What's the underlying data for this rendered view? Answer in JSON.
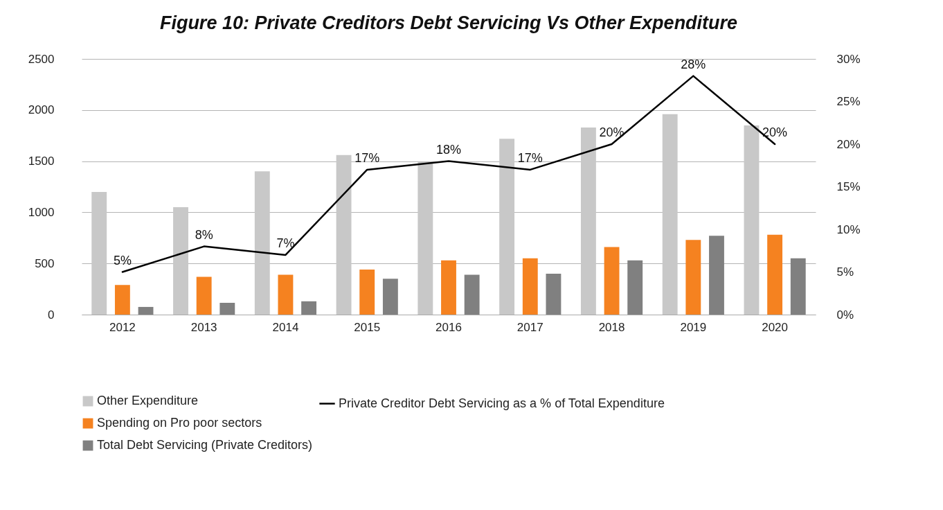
{
  "chart_data": {
    "type": "bar",
    "title": "Figure 10: Private Creditors Debt Servicing Vs Other Expenditure",
    "categories": [
      "2012",
      "2013",
      "2014",
      "2015",
      "2016",
      "2017",
      "2018",
      "2019",
      "2020"
    ],
    "series": [
      {
        "name": "Other Expenditure",
        "color": "#c8c8c8",
        "values": [
          1200,
          1050,
          1400,
          1560,
          1490,
          1720,
          1830,
          1960,
          1850
        ]
      },
      {
        "name": "Spending on Pro poor sectors",
        "color": "#f58220",
        "values": [
          290,
          370,
          390,
          440,
          530,
          550,
          660,
          730,
          780
        ]
      },
      {
        "name": "Total Debt Servicing (Private Creditors)",
        "color": "#808080",
        "values": [
          75,
          115,
          130,
          350,
          390,
          400,
          530,
          770,
          550
        ]
      },
      {
        "name": "Private Creditor Debt Servicing as a % of Total Expenditure",
        "type": "line",
        "axis": "y2",
        "color": "#000000",
        "values": [
          5,
          8,
          7,
          17,
          18,
          17,
          20,
          28,
          20
        ],
        "value_labels": [
          "5%",
          "8%",
          "7%",
          "17%",
          "18%",
          "17%",
          "20%",
          "28%",
          "20%"
        ]
      }
    ],
    "ylim": [
      0,
      2500
    ],
    "yticks": [
      0,
      500,
      1000,
      1500,
      2000,
      2500
    ],
    "y2lim": [
      0,
      30
    ],
    "y2ticks": [
      {
        "value": 0,
        "label": "0%"
      },
      {
        "value": 5,
        "label": "5%"
      },
      {
        "value": 10,
        "label": "10%"
      },
      {
        "value": 15,
        "label": "15%"
      },
      {
        "value": 20,
        "label": "20%"
      },
      {
        "value": 25,
        "label": "25%"
      },
      {
        "value": 30,
        "label": "30%"
      }
    ],
    "grid": "y",
    "legend": "bottom"
  }
}
